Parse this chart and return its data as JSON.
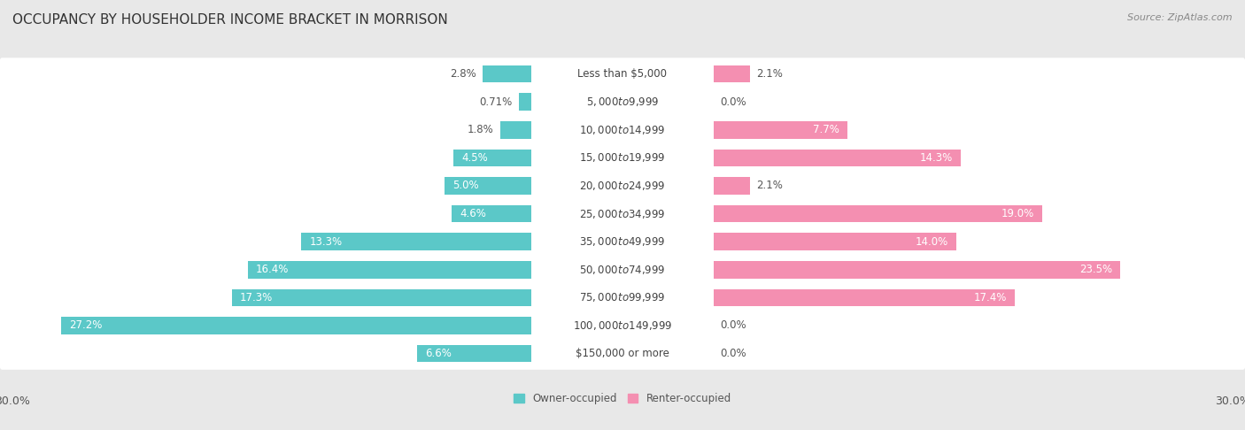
{
  "title": "OCCUPANCY BY HOUSEHOLDER INCOME BRACKET IN MORRISON",
  "source": "Source: ZipAtlas.com",
  "categories": [
    "Less than $5,000",
    "$5,000 to $9,999",
    "$10,000 to $14,999",
    "$15,000 to $19,999",
    "$20,000 to $24,999",
    "$25,000 to $34,999",
    "$35,000 to $49,999",
    "$50,000 to $74,999",
    "$75,000 to $99,999",
    "$100,000 to $149,999",
    "$150,000 or more"
  ],
  "owner_values": [
    2.8,
    0.71,
    1.8,
    4.5,
    5.0,
    4.6,
    13.3,
    16.4,
    17.3,
    27.2,
    6.6
  ],
  "renter_values": [
    2.1,
    0.0,
    7.7,
    14.3,
    2.1,
    19.0,
    14.0,
    23.5,
    17.4,
    0.0,
    0.0
  ],
  "owner_color": "#5BC8C8",
  "renter_color": "#F48FB1",
  "owner_label": "Owner-occupied",
  "renter_label": "Renter-occupied",
  "axis_max": 30.0,
  "background_color": "#e8e8e8",
  "row_bg_color": "#ffffff",
  "label_bg_color": "#ffffff",
  "title_fontsize": 11,
  "label_fontsize": 8.5,
  "value_fontsize": 8.5,
  "tick_fontsize": 9,
  "source_fontsize": 8
}
